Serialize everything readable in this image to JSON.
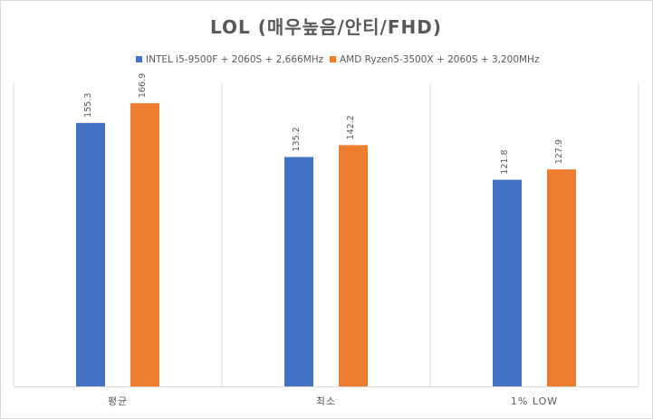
{
  "chart_data": {
    "type": "bar",
    "title": "LOL (매우높음/안티/FHD)",
    "categories": [
      "평균",
      "최소",
      "1% LOW"
    ],
    "series": [
      {
        "name": "INTEL i5-9500F + 2060S + 2,666MHz",
        "color": "#4472C4",
        "values": [
          155.3,
          135.2,
          121.8
        ]
      },
      {
        "name": "AMD Ryzen5-3500X + 2060S + 3,200MHz",
        "color": "#ED7D31",
        "values": [
          166.9,
          142.2,
          127.9
        ]
      }
    ],
    "value_labels": [
      [
        "155.3",
        "135.2",
        "121.8"
      ],
      [
        "166.9",
        "142.2",
        "127.9"
      ]
    ],
    "ylim": [
      0,
      180
    ],
    "legend_position": "top",
    "grid": "vertical category separators",
    "xlabel": "",
    "ylabel": ""
  }
}
